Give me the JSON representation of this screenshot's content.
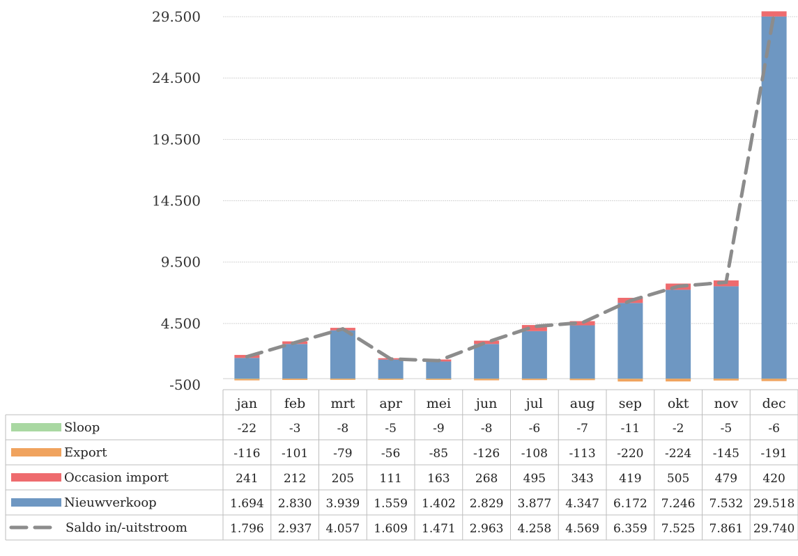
{
  "chart_data": {
    "type": "bar",
    "stacked": true,
    "categories": [
      "jan",
      "feb",
      "mrt",
      "apr",
      "mei",
      "jun",
      "jul",
      "aug",
      "sep",
      "okt",
      "nov",
      "dec"
    ],
    "ylim": [
      -500,
      29500
    ],
    "yticks": [
      -500,
      4500,
      9500,
      14500,
      19500,
      24500,
      29500
    ],
    "ytick_labels": [
      "-500",
      "4.500",
      "9.500",
      "14.500",
      "19.500",
      "24.500",
      "29.500"
    ],
    "grid": true,
    "legend": "data table",
    "series": [
      {
        "name": "Sloop",
        "type": "bar",
        "color": "#a9d8a2",
        "values": [
          -22,
          -3,
          -8,
          -5,
          -9,
          -8,
          -6,
          -7,
          -11,
          -2,
          -5,
          -6
        ],
        "labels": [
          "-22",
          "-3",
          "-8",
          "-5",
          "-9",
          "-8",
          "-6",
          "-7",
          "-11",
          "-2",
          "-5",
          "-6"
        ]
      },
      {
        "name": "Export",
        "type": "bar",
        "color": "#f0a35e",
        "values": [
          -116,
          -101,
          -79,
          -56,
          -85,
          -126,
          -108,
          -113,
          -220,
          -224,
          -145,
          -191
        ],
        "labels": [
          "-116",
          "-101",
          "-79",
          "-56",
          "-85",
          "-126",
          "-108",
          "-113",
          "-220",
          "-224",
          "-145",
          "-191"
        ]
      },
      {
        "name": "Occasion import",
        "type": "bar",
        "color": "#ee6b6e",
        "values": [
          241,
          212,
          205,
          111,
          163,
          268,
          495,
          343,
          419,
          505,
          479,
          420
        ],
        "labels": [
          "241",
          "212",
          "205",
          "111",
          "163",
          "268",
          "495",
          "343",
          "419",
          "505",
          "479",
          "420"
        ]
      },
      {
        "name": "Nieuwverkoop",
        "type": "bar",
        "color": "#6e97c2",
        "values": [
          1694,
          2830,
          3939,
          1559,
          1402,
          2829,
          3877,
          4347,
          6172,
          7246,
          7532,
          29518
        ],
        "labels": [
          "1.694",
          "2.830",
          "3.939",
          "1.559",
          "1.402",
          "2.829",
          "3.877",
          "4.347",
          "6.172",
          "7.246",
          "7.532",
          "29.518"
        ]
      },
      {
        "name": "Saldo in/-uitstroom",
        "type": "line",
        "style": "dashed",
        "color": "#8c8c8c",
        "values": [
          1796,
          2937,
          4057,
          1609,
          1471,
          2963,
          4258,
          4569,
          6359,
          7525,
          7861,
          29740
        ],
        "labels": [
          "1.796",
          "2.937",
          "4.057",
          "1.609",
          "1.471",
          "2.963",
          "4.258",
          "4.569",
          "6.359",
          "7.525",
          "7.861",
          "29.740"
        ]
      }
    ]
  }
}
